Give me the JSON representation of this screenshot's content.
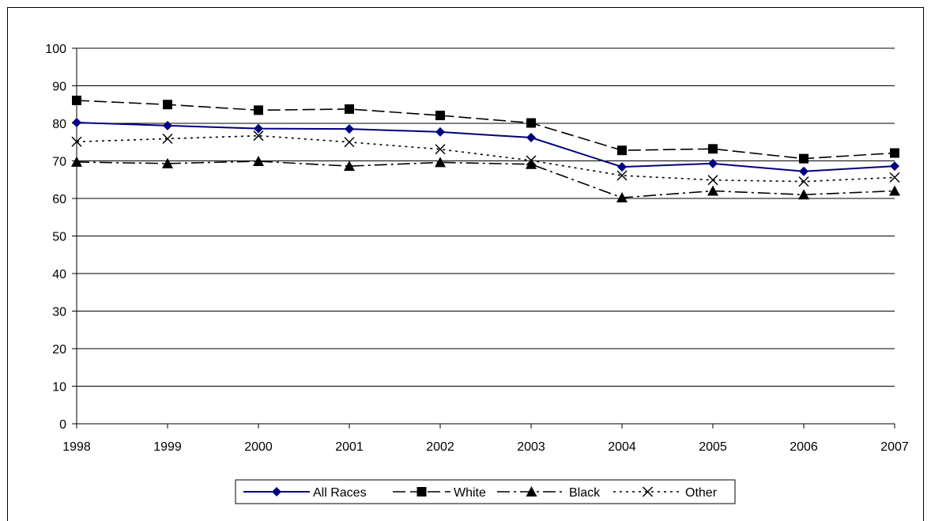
{
  "chart_data": {
    "type": "line",
    "title": "",
    "xlabel": "",
    "ylabel": "",
    "categories": [
      "1998",
      "1999",
      "2000",
      "2001",
      "2002",
      "2003",
      "2004",
      "2005",
      "2006",
      "2007"
    ],
    "yticks": [
      "0",
      "10",
      "20",
      "30",
      "40",
      "50",
      "60",
      "70",
      "80",
      "90",
      "100"
    ],
    "ylim": [
      0,
      100
    ],
    "grid": "horizontal",
    "legend_position": "bottom",
    "series": [
      {
        "name": "All Races",
        "values": [
          80.2,
          79.4,
          78.6,
          78.5,
          77.7,
          76.2,
          68.4,
          69.3,
          67.2,
          68.6
        ],
        "color": "#000080",
        "dash": "solid",
        "marker": "diamond"
      },
      {
        "name": "White",
        "values": [
          86.1,
          85.0,
          83.5,
          83.8,
          82.1,
          80.1,
          72.8,
          73.2,
          70.6,
          72.1
        ],
        "color": "#000000",
        "dash": "long-dash",
        "marker": "square"
      },
      {
        "name": "Black",
        "values": [
          69.7,
          69.3,
          69.9,
          68.6,
          69.6,
          69.1,
          60.2,
          62.0,
          61.0,
          62.0
        ],
        "color": "#000000",
        "dash": "dash-dot",
        "marker": "triangle"
      },
      {
        "name": "Other",
        "values": [
          75.1,
          75.9,
          76.7,
          75.0,
          73.1,
          70.1,
          66.1,
          64.9,
          64.5,
          65.6
        ],
        "color": "#000000",
        "dash": "dotted",
        "marker": "x"
      }
    ]
  }
}
